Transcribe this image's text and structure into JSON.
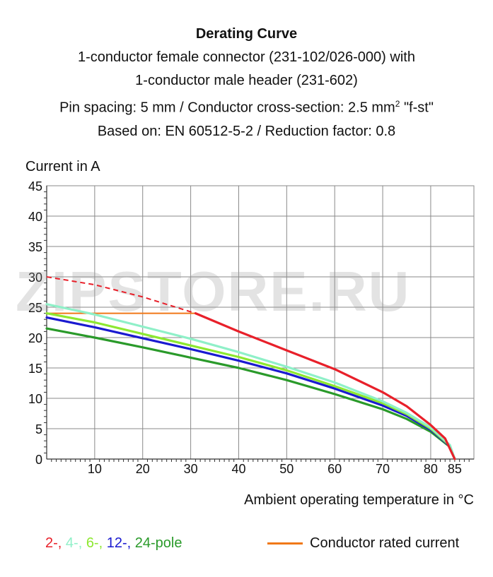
{
  "title": {
    "line1": "Derating Curve",
    "line2": "1-conductor female connector (231-102/026-000) with",
    "line3": "1-conductor male header (231-602)",
    "line4_a": "Pin spacing: 5 mm / Conductor cross-section: 2.5 mm",
    "line4_sup": "2",
    "line4_b": " \"f-st\"",
    "line5": "Based on: EN 60512-5-2 / Reduction factor: 0.8"
  },
  "watermark": "ZIPSTORE.RU",
  "chart_data": {
    "type": "line",
    "title": "Derating Curve",
    "xlabel": "Ambient operating temperature in °C",
    "ylabel": "Current in A",
    "xlim": [
      0,
      89
    ],
    "ylim": [
      0,
      45
    ],
    "x_ticks": [
      10,
      20,
      30,
      40,
      50,
      60,
      70,
      80,
      85
    ],
    "y_ticks": [
      0,
      5,
      10,
      15,
      20,
      25,
      30,
      35,
      40,
      45
    ],
    "grid": true,
    "legend_position": "bottom",
    "series": [
      {
        "name": "2-",
        "color": "#e8202a",
        "dashed_part": [
          [
            0,
            30
          ],
          [
            10,
            28.7
          ],
          [
            20,
            26.7
          ],
          [
            31,
            24
          ]
        ],
        "x": [
          31,
          40,
          50,
          60,
          70,
          75,
          80,
          83,
          85
        ],
        "y": [
          24,
          21,
          17.9,
          14.8,
          11,
          8.7,
          5.6,
          3.4,
          0
        ]
      },
      {
        "name": "4-",
        "color": "#8ff0c8",
        "x": [
          0,
          10,
          20,
          30,
          40,
          50,
          60,
          70,
          75,
          80,
          84,
          85
        ],
        "y": [
          25.5,
          23.8,
          21.8,
          19.8,
          17.6,
          15.2,
          12.6,
          9.5,
          7.6,
          5.2,
          2.3,
          0
        ]
      },
      {
        "name": "6-",
        "color": "#8de830",
        "x": [
          0,
          10,
          20,
          30,
          40,
          50,
          60,
          70,
          75,
          80,
          84,
          85
        ],
        "y": [
          24,
          22.5,
          20.6,
          18.7,
          16.8,
          14.6,
          12,
          9.2,
          7.4,
          5,
          2.2,
          0
        ]
      },
      {
        "name": "12-",
        "color": "#1a1ad0",
        "x": [
          0,
          10,
          20,
          30,
          40,
          50,
          60,
          70,
          75,
          80,
          84,
          85
        ],
        "y": [
          23.3,
          21.7,
          19.9,
          18.1,
          16.2,
          14.1,
          11.6,
          8.8,
          7.1,
          4.8,
          2.1,
          0
        ]
      },
      {
        "name": "24-",
        "color": "#2a9a2a",
        "x": [
          0,
          10,
          20,
          30,
          40,
          50,
          60,
          70,
          75,
          80,
          84,
          85
        ],
        "y": [
          21.5,
          20,
          18.4,
          16.7,
          15,
          13,
          10.7,
          8.2,
          6.6,
          4.5,
          2,
          0
        ]
      }
    ],
    "rated_current": {
      "name": "Conductor rated current",
      "color": "#f07818",
      "value": 24,
      "x": [
        0,
        31
      ]
    },
    "legend": {
      "poles_suffix": "pole",
      "rated_label": "Conductor rated current"
    }
  }
}
